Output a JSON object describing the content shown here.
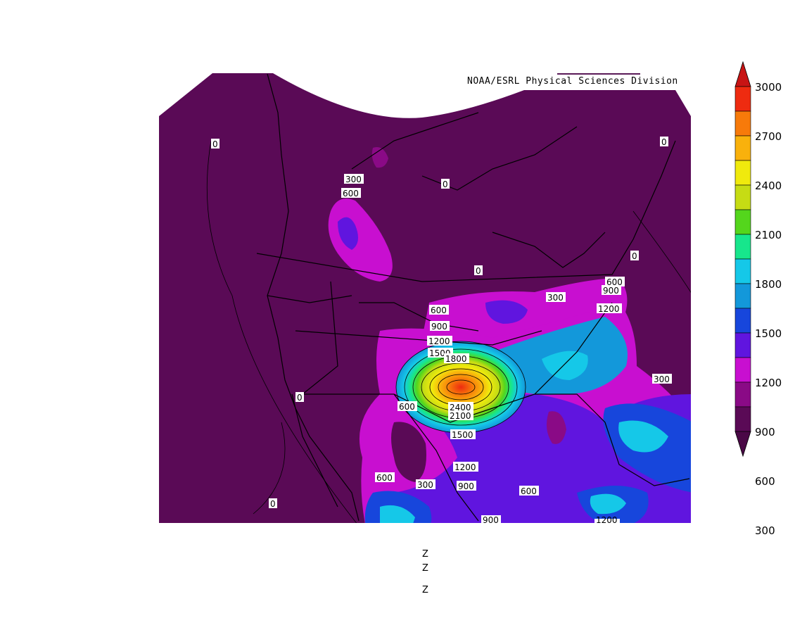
{
  "credit": "NOAA/ESRL Physical Sciences Division",
  "footer_lines": [
    "Z",
    "Z",
    "Z"
  ],
  "colorbar": {
    "labels": [
      "3000",
      "2700",
      "2400",
      "2100",
      "1800",
      "1500",
      "1200",
      "900",
      "600",
      "300"
    ],
    "colors": [
      "#ee2b10",
      "#f77a0a",
      "#f9b10c",
      "#f0ea0d",
      "#c6dc14",
      "#54d61c",
      "#17e68c",
      "#15c8e8",
      "#1398da",
      "#1746dc",
      "#6015df",
      "#c80fd0",
      "#8a0a86",
      "#5a0a56"
    ],
    "arrow_top_color": "#c81414",
    "arrow_bottom_color": "#4a0846"
  },
  "contour_labels": [
    {
      "text": "0"
    },
    {
      "text": "0"
    },
    {
      "text": "300"
    },
    {
      "text": "600"
    },
    {
      "text": "0"
    },
    {
      "text": "0"
    },
    {
      "text": "0"
    },
    {
      "text": "600"
    },
    {
      "text": "900"
    },
    {
      "text": "300"
    },
    {
      "text": "1200"
    },
    {
      "text": "600"
    },
    {
      "text": "900"
    },
    {
      "text": "1200"
    },
    {
      "text": "1500"
    },
    {
      "text": "1800"
    },
    {
      "text": "0"
    },
    {
      "text": "2400"
    },
    {
      "text": "2100"
    },
    {
      "text": "600"
    },
    {
      "text": "1500"
    },
    {
      "text": "300"
    },
    {
      "text": "1200"
    },
    {
      "text": "600"
    },
    {
      "text": "300"
    },
    {
      "text": "900"
    },
    {
      "text": "600"
    },
    {
      "text": "0"
    },
    {
      "text": "900"
    },
    {
      "text": "1200"
    }
  ]
}
